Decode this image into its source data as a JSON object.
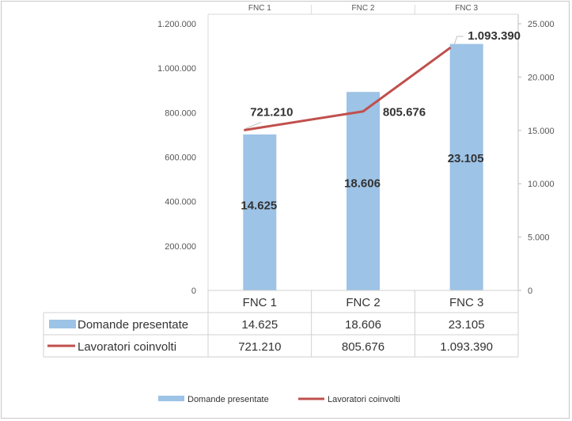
{
  "chart_data": {
    "type": "bar",
    "categories": [
      "FNC 1",
      "FNC 2",
      "FNC 3"
    ],
    "series": [
      {
        "name": "Domande presentate",
        "type": "bar",
        "axis": "right",
        "values": [
          14625,
          18606,
          23105
        ],
        "labels": [
          "14.625",
          "18.606",
          "23.105"
        ],
        "color": "#9dc3e6"
      },
      {
        "name": "Lavoratori coinvolti",
        "type": "line",
        "axis": "left",
        "values": [
          721210,
          805676,
          1093390
        ],
        "labels": [
          "721.210",
          "805.676",
          "1.093.390"
        ],
        "color": "#c0504d"
      }
    ],
    "y_left": {
      "range": [
        0,
        1200000
      ],
      "ticks": [
        0,
        200000,
        400000,
        600000,
        800000,
        1000000,
        1200000
      ],
      "tick_labels": [
        "0",
        "200.000",
        "400.000",
        "600.000",
        "800.000",
        "1.000.000",
        "1.200.000"
      ]
    },
    "y_right": {
      "range": [
        0,
        25000
      ],
      "ticks": [
        0,
        5000,
        10000,
        15000,
        20000,
        25000
      ],
      "tick_labels": [
        "0",
        "5.000",
        "10.000",
        "15.000",
        "20.000",
        "25.000"
      ]
    },
    "top_categories": [
      "FNC 1",
      "FNC 2",
      "FNC 3"
    ],
    "data_table": {
      "headers": [
        "FNC 1",
        "FNC 2",
        "FNC 3"
      ],
      "rows": [
        {
          "label": "Domande presentate",
          "values": [
            "14.625",
            "18.606",
            "23.105"
          ]
        },
        {
          "label": "Lavoratori coinvolti",
          "values": [
            "721.210",
            "805.676",
            "1.093.390"
          ]
        }
      ]
    },
    "legend": {
      "position": "bottom",
      "items": [
        "Domande presentate",
        "Lavoratori coinvolti"
      ]
    },
    "grid": false
  }
}
